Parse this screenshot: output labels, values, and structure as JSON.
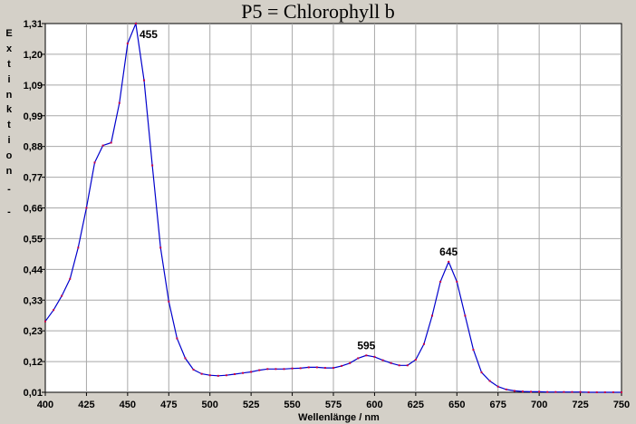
{
  "chart_data": {
    "type": "line",
    "title": "P5 = Chlorophyll b",
    "xlabel": "Wellenlänge / nm",
    "ylabel": "E x t i n k t i o n   -   -",
    "ylabel_chars": [
      "E",
      "x",
      "t",
      "i",
      "n",
      "k",
      "t",
      "i",
      "o",
      "n",
      "-",
      "-"
    ],
    "xlim": [
      400,
      750
    ],
    "ylim": [
      0.01,
      1.31
    ],
    "x_ticks": [
      "400",
      "425",
      "450",
      "475",
      "500",
      "525",
      "550",
      "575",
      "600",
      "625",
      "650",
      "675",
      "700",
      "725",
      "750"
    ],
    "y_ticks": [
      "0,01",
      "0,12",
      "0,23",
      "0,33",
      "0,44",
      "0,55",
      "0,66",
      "0,77",
      "0,88",
      "0,99",
      "1,09",
      "1,20",
      "1,31"
    ],
    "grid": true,
    "colors": {
      "line": "#0000cc",
      "points": "#cc0044",
      "grid": "#a8a8a8",
      "plot_bg": "#ffffff"
    },
    "series": [
      {
        "x": [
          400,
          405,
          410,
          415,
          420,
          425,
          430,
          435,
          440,
          445,
          450,
          455,
          460,
          465,
          470,
          475,
          480,
          485,
          490,
          495,
          500,
          505,
          510,
          515,
          520,
          525,
          530,
          535,
          540,
          545,
          550,
          555,
          560,
          565,
          570,
          575,
          580,
          585,
          590,
          595,
          600,
          605,
          610,
          615,
          620,
          625,
          630,
          635,
          640,
          645,
          650,
          655,
          660,
          665,
          670,
          675,
          680,
          685,
          690,
          695,
          700,
          705,
          710,
          715,
          720,
          725,
          730,
          735,
          740,
          745,
          750
        ],
        "y": [
          0.26,
          0.3,
          0.35,
          0.41,
          0.52,
          0.66,
          0.82,
          0.88,
          0.89,
          1.03,
          1.24,
          1.31,
          1.11,
          0.81,
          0.52,
          0.33,
          0.2,
          0.13,
          0.09,
          0.075,
          0.07,
          0.068,
          0.07,
          0.074,
          0.078,
          0.082,
          0.088,
          0.092,
          0.092,
          0.092,
          0.094,
          0.095,
          0.098,
          0.098,
          0.096,
          0.096,
          0.103,
          0.113,
          0.13,
          0.14,
          0.135,
          0.123,
          0.113,
          0.105,
          0.105,
          0.125,
          0.18,
          0.28,
          0.4,
          0.47,
          0.4,
          0.28,
          0.16,
          0.08,
          0.05,
          0.03,
          0.02,
          0.015,
          0.013,
          0.012,
          0.012,
          0.011,
          0.011,
          0.011,
          0.011,
          0.011,
          0.01,
          0.01,
          0.01,
          0.01,
          0.01
        ]
      }
    ],
    "annotations": [
      {
        "x": 455,
        "y": 1.31,
        "text": "455"
      },
      {
        "x": 595,
        "y": 0.14,
        "text": "595"
      },
      {
        "x": 645,
        "y": 0.47,
        "text": "645"
      }
    ]
  }
}
